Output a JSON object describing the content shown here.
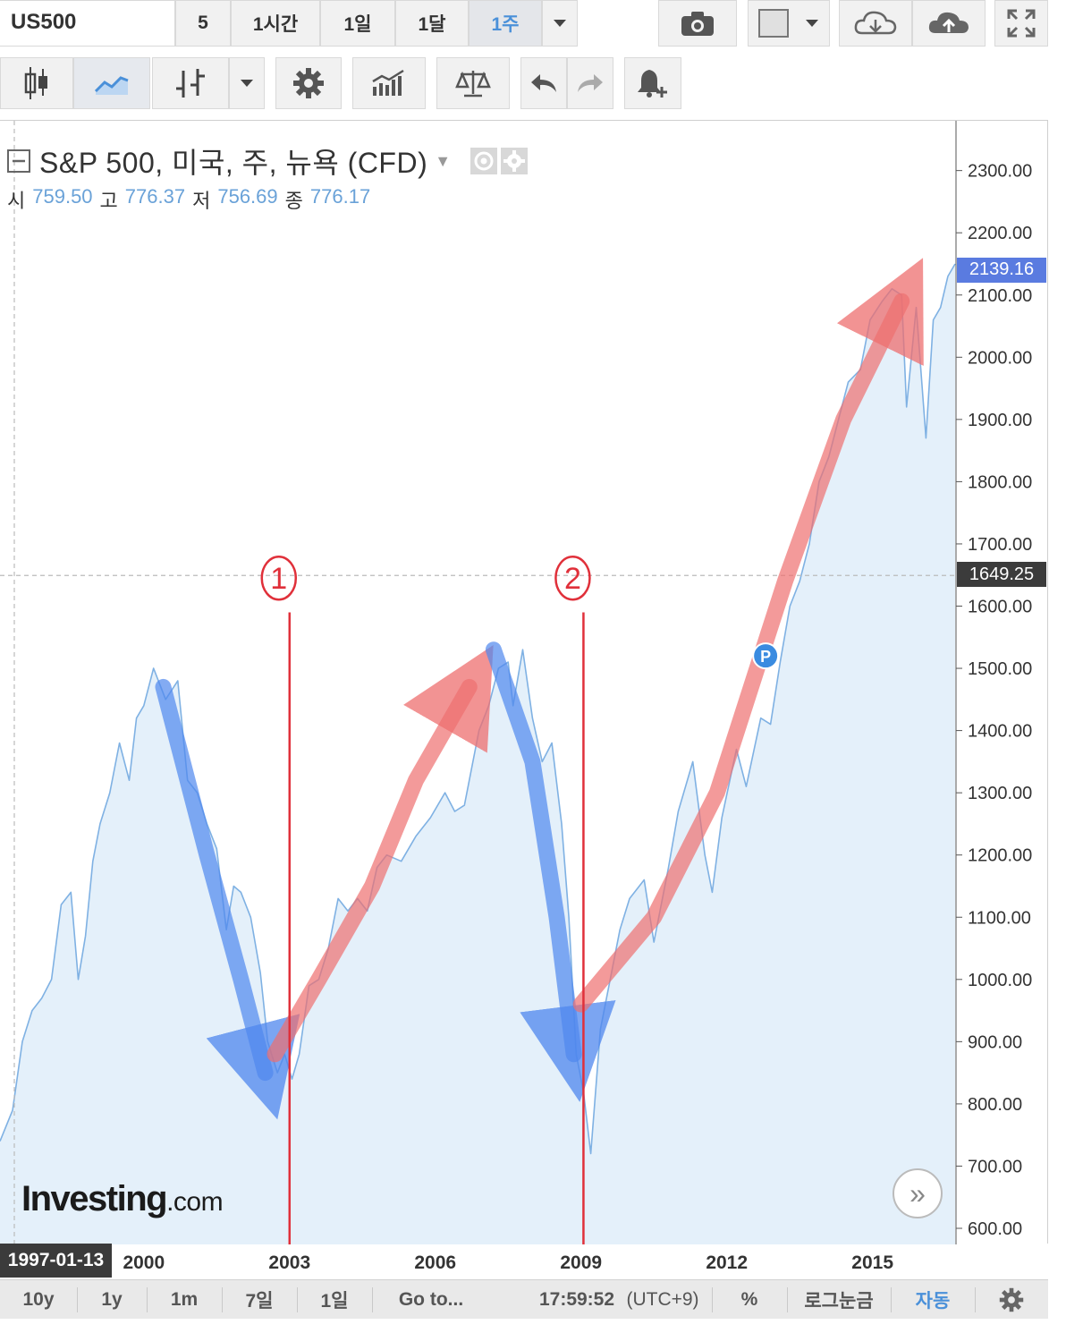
{
  "toolbar": {
    "symbol": "US500",
    "intervals": [
      "5",
      "1시간",
      "1일",
      "1달",
      "1주"
    ],
    "selected_interval": "1주"
  },
  "legend": {
    "title": "S&P 500, 미국, 주, 뉴욕 (CFD)",
    "open_label": "시",
    "open_value": "759.50",
    "high_label": "고",
    "high_value": "776.37",
    "low_label": "저",
    "low_value": "756.69",
    "close_label": "종",
    "close_value": "776.17"
  },
  "price_badges": {
    "last_price": "2139.16",
    "last_price_color": "#5a7be0",
    "crosshair_price": "1649.25",
    "crosshair_color": "#3b3b3b"
  },
  "annotations": {
    "marker_1": "1",
    "marker_2": "2",
    "event_marker": "P"
  },
  "x_axis_first_label": "1997-01-13",
  "bottom_bar": {
    "ranges": [
      "10y",
      "1y",
      "1m",
      "7일",
      "1일"
    ],
    "goto": "Go to...",
    "time": "17:59:52",
    "timezone": "(UTC+9)",
    "percent": "%",
    "log_scale": "로그눈금",
    "auto": "자동"
  },
  "logo": {
    "brand": "Investing",
    "suffix": ".com"
  },
  "colors": {
    "line": "#7fb1e3",
    "area": "#e4f0fa",
    "red_arrow": "#ee6f6f",
    "blue_arrow": "#4f87ee",
    "red_line": "#e0303a"
  },
  "chart_data": {
    "type": "area",
    "title": "S&P 500, 미국, 주, 뉴욕 (CFD)",
    "xlabel": "",
    "ylabel": "",
    "x_ticks": [
      2000,
      2003,
      2006,
      2009,
      2012,
      2015
    ],
    "y_ticks": [
      600,
      700,
      800,
      900,
      1000,
      1100,
      1200,
      1300,
      1400,
      1500,
      1600,
      1700,
      1800,
      1900,
      2000,
      2100,
      2200,
      2300
    ],
    "ylim": [
      580,
      2340
    ],
    "xlim": [
      1997.04,
      2016.7
    ],
    "grid": false,
    "series": [
      {
        "x": [
          1997.04,
          1997.3,
          1997.5,
          1997.7,
          1997.9,
          1998.1,
          1998.3,
          1998.5,
          1998.65,
          1998.8,
          1998.95,
          1999.1,
          1999.3,
          1999.5,
          1999.7,
          1999.85,
          2000.0,
          2000.2,
          2000.45,
          2000.7,
          2000.9,
          2001.1,
          2001.3,
          2001.5,
          2001.7,
          2001.85,
          2002.0,
          2002.2,
          2002.4,
          2002.55,
          2002.75,
          2002.9,
          2003.05,
          2003.2,
          2003.4,
          2003.6,
          2003.8,
          2004.0,
          2004.2,
          2004.4,
          2004.6,
          2004.8,
          2005.0,
          2005.3,
          2005.6,
          2005.9,
          2006.2,
          2006.4,
          2006.6,
          2006.9,
          2007.1,
          2007.3,
          2007.5,
          2007.6,
          2007.8,
          2008.0,
          2008.2,
          2008.4,
          2008.6,
          2008.75,
          2008.9,
          2009.05,
          2009.2,
          2009.4,
          2009.6,
          2009.8,
          2010.0,
          2010.3,
          2010.5,
          2010.8,
          2011.0,
          2011.3,
          2011.55,
          2011.7,
          2011.9,
          2012.2,
          2012.4,
          2012.7,
          2012.9,
          2013.1,
          2013.3,
          2013.5,
          2013.7,
          2013.9,
          2014.1,
          2014.3,
          2014.5,
          2014.75,
          2014.95,
          2015.2,
          2015.4,
          2015.6,
          2015.7,
          2015.9,
          2016.1,
          2016.25,
          2016.4,
          2016.55,
          2016.7
        ],
        "y": [
          740,
          790,
          900,
          950,
          970,
          1000,
          1120,
          1140,
          1000,
          1070,
          1190,
          1250,
          1300,
          1380,
          1320,
          1420,
          1440,
          1500,
          1450,
          1480,
          1320,
          1300,
          1250,
          1210,
          1080,
          1150,
          1140,
          1100,
          1010,
          900,
          850,
          880,
          840,
          880,
          990,
          1000,
          1050,
          1130,
          1110,
          1130,
          1110,
          1180,
          1200,
          1190,
          1230,
          1260,
          1300,
          1270,
          1280,
          1400,
          1440,
          1500,
          1510,
          1440,
          1530,
          1420,
          1350,
          1380,
          1250,
          1100,
          880,
          820,
          720,
          920,
          1000,
          1080,
          1130,
          1160,
          1060,
          1180,
          1270,
          1350,
          1200,
          1140,
          1260,
          1370,
          1310,
          1420,
          1410,
          1510,
          1600,
          1640,
          1700,
          1800,
          1840,
          1900,
          1960,
          1980,
          2060,
          2090,
          2110,
          2100,
          1920,
          2080,
          1870,
          2060,
          2080,
          2130,
          2150
        ]
      }
    ],
    "annotation_lines_x": [
      2003.0,
      2009.05
    ]
  }
}
